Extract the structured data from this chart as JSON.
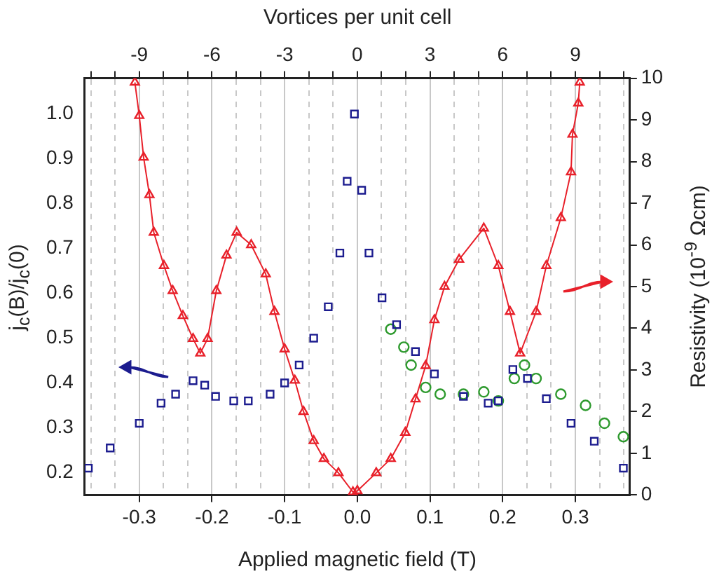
{
  "chart_data": {
    "type": "scatter",
    "xlabel": "Applied magnetic field (T)",
    "x2label": "Vortices per unit cell",
    "ylabel": "j$_{c}$(B)/j$_{c}$(0)",
    "y2label": "Resistivity (10$^{-9}$ Ωcm)",
    "xlim": [
      -0.375,
      0.375
    ],
    "xticks": [
      -0.3,
      -0.2,
      -0.1,
      {
        "value": 0,
        "label": "0.0"
      },
      0.1,
      0.2,
      0.3
    ],
    "x2lim": [
      -11.25,
      11.25
    ],
    "x2ticks": [
      {
        "value": -11,
        "label": null
      },
      {
        "value": -10,
        "label": null
      },
      -9,
      {
        "value": -8,
        "label": null
      },
      {
        "value": -7,
        "label": null
      },
      -6,
      {
        "value": -5,
        "label": null
      },
      {
        "value": -4,
        "label": null
      },
      -3,
      {
        "value": -2,
        "label": null
      },
      {
        "value": -1,
        "label": null
      },
      0,
      {
        "value": 1,
        "label": null
      },
      {
        "value": 2,
        "label": null
      },
      3,
      {
        "value": 4,
        "label": null
      },
      {
        "value": 5,
        "label": null
      },
      6,
      {
        "value": 7,
        "label": null
      },
      {
        "value": 8,
        "label": null
      },
      9,
      {
        "value": 10,
        "label": null
      },
      {
        "value": 11,
        "label": null
      }
    ],
    "ylim": [
      0.15,
      1.08
    ],
    "yticks": [
      0.2,
      0.3,
      0.4,
      0.5,
      0.6,
      0.7,
      0.8,
      0.9,
      {
        "value": 1,
        "label": "1.0"
      }
    ],
    "y2lim": [
      0,
      10
    ],
    "y2ticks": [
      0,
      1,
      2,
      3,
      4,
      5,
      6,
      7,
      8,
      9,
      10
    ],
    "grid": "x",
    "legend": false,
    "series": [
      {
        "type": "scatter",
        "marker": "square",
        "color": "#1c1c8f",
        "x": [
          -0.37,
          -0.34,
          -0.3,
          -0.27,
          -0.25,
          -0.226,
          -0.21,
          -0.195,
          -0.17,
          -0.15,
          -0.12,
          -0.1,
          -0.08,
          -0.06,
          -0.04,
          -0.024,
          -0.014,
          -0.004,
          0.006,
          0.016,
          0.034,
          0.054,
          0.08,
          0.106,
          0.146,
          0.18,
          0.194,
          0.214,
          0.234,
          0.26,
          0.294,
          0.326,
          0.366
        ],
        "values": [
          0.21,
          0.255,
          0.31,
          0.355,
          0.375,
          0.405,
          0.395,
          0.37,
          0.36,
          0.36,
          0.375,
          0.4,
          0.44,
          0.5,
          0.57,
          0.69,
          0.85,
          1.0,
          0.83,
          0.69,
          0.59,
          0.53,
          0.47,
          0.42,
          0.37,
          0.355,
          0.36,
          0.43,
          0.41,
          0.365,
          0.31,
          0.27,
          0.21
        ]
      },
      {
        "type": "scatter",
        "marker": "circle",
        "color": "#2e9a2e",
        "x": [
          0.046,
          0.064,
          0.074,
          0.094,
          0.114,
          0.146,
          0.174,
          0.194,
          0.216,
          0.23,
          0.246,
          0.28,
          0.314,
          0.34,
          0.366
        ],
        "values": [
          0.52,
          0.48,
          0.44,
          0.39,
          0.375,
          0.375,
          0.38,
          0.36,
          0.41,
          0.44,
          0.41,
          0.375,
          0.35,
          0.31,
          0.28
        ]
      },
      {
        "type": "line",
        "marker": "triangle",
        "axis": "y2",
        "color": "#e8202a",
        "x": [
          -0.306,
          -0.3,
          -0.294,
          -0.286,
          -0.28,
          -0.266,
          -0.254,
          -0.24,
          -0.226,
          -0.216,
          -0.206,
          -0.194,
          -0.18,
          -0.166,
          -0.146,
          -0.126,
          -0.114,
          -0.1,
          -0.086,
          -0.074,
          -0.06,
          -0.046,
          -0.026,
          -0.006,
          0,
          0.026,
          0.046,
          0.066,
          0.08,
          0.094,
          0.106,
          0.12,
          0.14,
          0.174,
          0.194,
          0.21,
          0.224,
          0.246,
          0.26,
          0.28,
          0.294,
          0.296,
          0.304,
          0.306
        ],
        "values": [
          9.9,
          9.1,
          8.1,
          7.2,
          6.3,
          5.5,
          4.9,
          4.3,
          3.75,
          3.4,
          3.75,
          4.9,
          5.75,
          6.3,
          6.0,
          5.3,
          4.4,
          3.5,
          2.75,
          2.0,
          1.3,
          0.87,
          0.53,
          0.07,
          0.1,
          0.53,
          0.87,
          1.5,
          2.3,
          3.1,
          4.2,
          5.0,
          5.65,
          6.4,
          5.5,
          4.4,
          3.4,
          4.4,
          5.5,
          6.65,
          7.75,
          8.65,
          9.4,
          9.9
        ]
      }
    ]
  }
}
